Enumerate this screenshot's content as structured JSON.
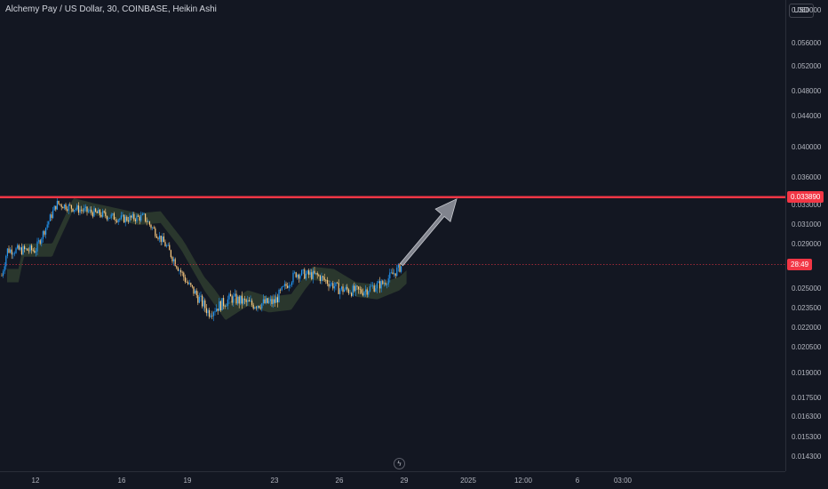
{
  "header": {
    "title": "Alchemy Pay / US Dollar, 30, COINBASE, Heikin Ashi"
  },
  "price_axis": {
    "currency": "USD",
    "ticks": [
      "0.060000",
      "0.056000",
      "0.052000",
      "0.048000",
      "0.044000",
      "0.040000",
      "0.036000",
      "0.033000",
      "0.031000",
      "0.029000",
      "0.025000",
      "0.023500",
      "0.022000",
      "0.020500",
      "0.019000",
      "0.017500",
      "0.016300",
      "0.015300",
      "0.014300"
    ],
    "resistance_label": "0.033890",
    "countdown_label": "28:49"
  },
  "time_axis": {
    "ticks": [
      "12",
      "16",
      "19",
      "23",
      "26",
      "29",
      "2025",
      "12:00",
      "6",
      "03:00"
    ]
  },
  "colors": {
    "background": "#131722",
    "resistance": "#f23645",
    "up_candle": "#2196f3",
    "down_candle": "#ffcc80",
    "ma_band": "#2e3b2f",
    "arrow": "#9598a1"
  },
  "chart_data": {
    "type": "line",
    "title": "Alchemy Pay / US Dollar, 30, COINBASE, Heikin Ashi",
    "xlabel": "",
    "ylabel": "",
    "ylim": [
      0.0138,
      0.0622
    ],
    "resistance_level": 0.03389,
    "current_price": 0.0272,
    "x": [
      "12",
      "13",
      "14",
      "15",
      "16",
      "17",
      "18",
      "19",
      "20",
      "21",
      "22",
      "23",
      "24",
      "25",
      "26",
      "27",
      "28",
      "29"
    ],
    "series": [
      {
        "values": [
          0.0285,
          0.0332,
          0.0326,
          0.0321,
          0.0316,
          0.0318,
          0.029,
          0.0255,
          0.0232,
          0.0243,
          0.0238,
          0.024,
          0.0264,
          0.0262,
          0.025,
          0.0248,
          0.0255,
          0.0273
        ]
      }
    ],
    "icon": "bolt-icon"
  }
}
